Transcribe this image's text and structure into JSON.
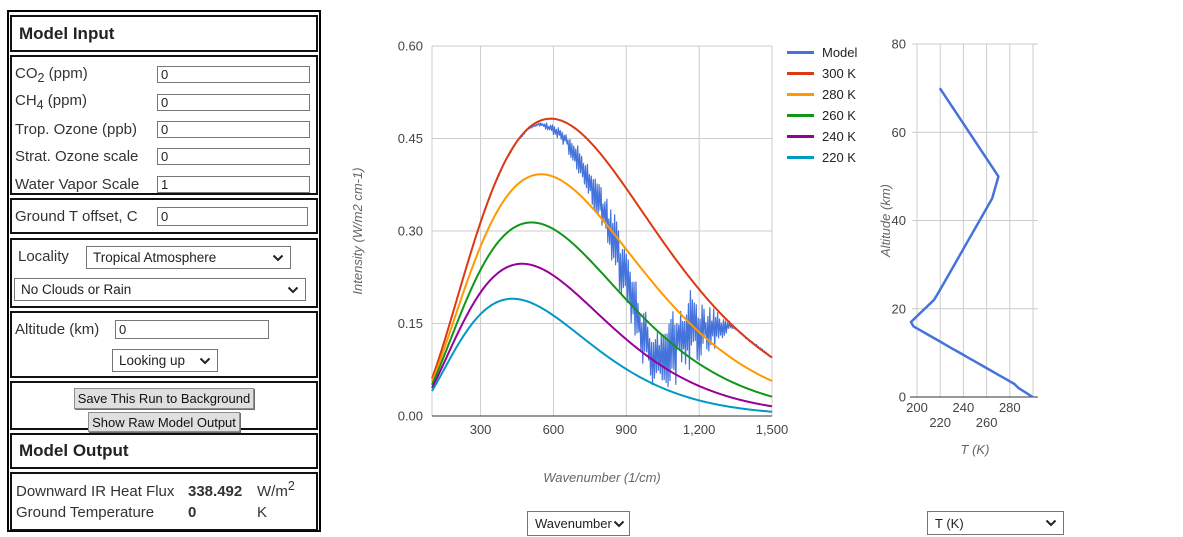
{
  "panel": {
    "input_title": "Model Input",
    "fields": [
      {
        "pre": "CO",
        "sub": "2",
        "post": " (ppm)",
        "value": "0"
      },
      {
        "pre": "CH",
        "sub": "4",
        "post": " (ppm)",
        "value": "0"
      },
      {
        "pre": "Trop. Ozone (ppb)",
        "sub": "",
        "post": "",
        "value": "0"
      },
      {
        "pre": "Strat. Ozone scale",
        "sub": "",
        "post": "",
        "value": "0"
      },
      {
        "pre": "Water Vapor Scale",
        "sub": "",
        "post": "",
        "value": "1"
      }
    ],
    "ground_offset": {
      "label": "Ground T offset, C",
      "value": "0"
    },
    "locality_label": "Locality",
    "locality_value": "Tropical Atmosphere",
    "clouds_value": "No Clouds or Rain",
    "altitude_label": "Altitude (km)",
    "altitude_value": "0",
    "direction_value": "Looking up",
    "save_button": "Save This Run to Background",
    "raw_button": "Show Raw Model Output",
    "output_title": "Model Output",
    "output_rows": [
      {
        "label": "Downward IR Heat Flux",
        "value": "338.492",
        "unit_pre": "W/m",
        "unit_sup": "2"
      },
      {
        "label": "Ground Temperature",
        "value": "0",
        "unit_pre": "K",
        "unit_sup": ""
      }
    ]
  },
  "controls": {
    "spectrum_x_select": "Wavenumber",
    "profile_x_select": "T (K)"
  },
  "chart_data": [
    {
      "id": "spectrum",
      "type": "line",
      "xlabel": "Wavenumber (1/cm)",
      "ylabel": "Intensity (W/m2 cm-1)",
      "x_range": [
        100,
        1500
      ],
      "y_range": [
        0,
        0.6
      ],
      "x_ticks": [
        {
          "v": 300,
          "label": "300"
        },
        {
          "v": 600,
          "label": "600"
        },
        {
          "v": 900,
          "label": "900"
        },
        {
          "v": 1200,
          "label": "1,200"
        },
        {
          "v": 1500,
          "label": "1,500"
        }
      ],
      "y_ticks": [
        {
          "v": 0,
          "label": "0.00"
        },
        {
          "v": 0.15,
          "label": "0.15"
        },
        {
          "v": 0.3,
          "label": "0.30"
        },
        {
          "v": 0.45,
          "label": "0.45"
        },
        {
          "v": 0.6,
          "label": "0.60"
        }
      ],
      "legend_position": "right",
      "series": [
        {
          "name": "Model",
          "color": "#4573DB",
          "kind": "modtran_spectrum",
          "envelope": [
            [
              100,
              0.0595,
              0.0625
            ],
            [
              150,
              0.1185,
              0.1215
            ],
            [
              200,
              0.1845,
              0.1875
            ],
            [
              250,
              0.2505,
              0.2535
            ],
            [
              300,
              0.3125,
              0.3155
            ],
            [
              350,
              0.366,
              0.369
            ],
            [
              400,
              0.4105,
              0.4135
            ],
            [
              450,
              0.4435,
              0.4465
            ],
            [
              500,
              0.4655,
              0.4695
            ],
            [
              540,
              0.4705,
              0.4765
            ],
            [
              570,
              0.464,
              0.476
            ],
            [
              600,
              0.455,
              0.472
            ],
            [
              630,
              0.448,
              0.468
            ],
            [
              660,
              0.425,
              0.458
            ],
            [
              700,
              0.39,
              0.44
            ],
            [
              740,
              0.36,
              0.415
            ],
            [
              780,
              0.32,
              0.39
            ],
            [
              820,
              0.27,
              0.355
            ],
            [
              860,
              0.22,
              0.32
            ],
            [
              900,
              0.16,
              0.27
            ],
            [
              940,
              0.11,
              0.22
            ],
            [
              980,
              0.07,
              0.17
            ],
            [
              1020,
              0.04,
              0.14
            ],
            [
              1060,
              0.035,
              0.16
            ],
            [
              1100,
              0.05,
              0.195
            ],
            [
              1140,
              0.06,
              0.205
            ],
            [
              1180,
              0.08,
              0.205
            ],
            [
              1220,
              0.09,
              0.19
            ],
            [
              1260,
              0.1,
              0.175
            ],
            [
              1300,
              0.12,
              0.16
            ],
            [
              1330,
              0.14,
              0.152
            ],
            [
              1360,
              0.1365,
              0.1405
            ],
            [
              1400,
              0.1225,
              0.1265
            ],
            [
              1450,
              0.108,
              0.112
            ],
            [
              1500,
              0.0935,
              0.0965
            ]
          ]
        },
        {
          "name": "300 K",
          "color": "#DC3912",
          "kind": "blackbody",
          "temperature_K": 300,
          "sample_points": [
            [
              100,
              0.061
            ],
            [
              200,
              0.186
            ],
            [
              300,
              0.314
            ],
            [
              400,
              0.412
            ],
            [
              500,
              0.468
            ],
            [
              600,
              0.482
            ],
            [
              700,
              0.463
            ],
            [
              800,
              0.422
            ],
            [
              900,
              0.369
            ],
            [
              1000,
              0.312
            ],
            [
              1100,
              0.256
            ],
            [
              1200,
              0.205
            ],
            [
              1300,
              0.161
            ],
            [
              1400,
              0.125
            ],
            [
              1500,
              0.095
            ]
          ]
        },
        {
          "name": "280 K",
          "color": "#FF9900",
          "kind": "blackbody",
          "temperature_K": 280,
          "sample_points": [
            [
              100,
              0.056
            ],
            [
              200,
              0.167
            ],
            [
              300,
              0.275
            ],
            [
              400,
              0.352
            ],
            [
              500,
              0.388
            ],
            [
              600,
              0.388
            ],
            [
              700,
              0.362
            ],
            [
              800,
              0.319
            ],
            [
              900,
              0.27
            ],
            [
              1000,
              0.221
            ],
            [
              1100,
              0.175
            ],
            [
              1200,
              0.136
            ],
            [
              1300,
              0.103
            ],
            [
              1400,
              0.077
            ],
            [
              1500,
              0.057
            ]
          ]
        },
        {
          "name": "260 K",
          "color": "#109618",
          "kind": "blackbody",
          "temperature_K": 260,
          "sample_points": [
            [
              100,
              0.051
            ],
            [
              200,
              0.148
            ],
            [
              300,
              0.237
            ],
            [
              400,
              0.294
            ],
            [
              500,
              0.314
            ],
            [
              600,
              0.303
            ],
            [
              700,
              0.272
            ],
            [
              800,
              0.232
            ],
            [
              900,
              0.189
            ],
            [
              1000,
              0.148
            ],
            [
              1100,
              0.113
            ],
            [
              1200,
              0.085
            ],
            [
              1300,
              0.062
            ],
            [
              1400,
              0.044
            ],
            [
              1500,
              0.031
            ]
          ]
        },
        {
          "name": "240 K",
          "color": "#990099",
          "kind": "blackbody",
          "temperature_K": 240,
          "sample_points": [
            [
              100,
              0.046
            ],
            [
              200,
              0.129
            ],
            [
              300,
              0.2
            ],
            [
              400,
              0.239
            ],
            [
              500,
              0.246
            ],
            [
              600,
              0.228
            ],
            [
              700,
              0.196
            ],
            [
              800,
              0.16
            ],
            [
              900,
              0.124
            ],
            [
              1000,
              0.093
            ],
            [
              1100,
              0.068
            ],
            [
              1200,
              0.049
            ],
            [
              1300,
              0.034
            ],
            [
              1400,
              0.023
            ],
            [
              1500,
              0.016
            ]
          ]
        },
        {
          "name": "220 K",
          "color": "#0099C6",
          "kind": "blackbody",
          "temperature_K": 220,
          "sample_points": [
            [
              100,
              0.041
            ],
            [
              200,
              0.111
            ],
            [
              300,
              0.165
            ],
            [
              400,
              0.189
            ],
            [
              500,
              0.185
            ],
            [
              600,
              0.163
            ],
            [
              700,
              0.133
            ],
            [
              800,
              0.103
            ],
            [
              900,
              0.076
            ],
            [
              1000,
              0.054
            ],
            [
              1100,
              0.037
            ],
            [
              1200,
              0.025
            ],
            [
              1300,
              0.017
            ],
            [
              1400,
              0.011
            ],
            [
              1500,
              0.007
            ]
          ]
        }
      ]
    },
    {
      "id": "temperature-profile",
      "type": "line",
      "xlabel": "T (K)",
      "ylabel": "Altitude (km)",
      "x_range": [
        195.7,
        304.3
      ],
      "y_range": [
        0,
        80
      ],
      "x_ticks": [
        {
          "v": 200,
          "label": "200",
          "row": 0
        },
        {
          "v": 220,
          "label": "220",
          "row": 1
        },
        {
          "v": 240,
          "label": "240",
          "row": 0
        },
        {
          "v": 260,
          "label": "260",
          "row": 1
        },
        {
          "v": 280,
          "label": "280",
          "row": 0
        }
      ],
      "x_gridlines": [
        200,
        220,
        240,
        260,
        280,
        300
      ],
      "y_ticks": [
        {
          "v": 0,
          "label": "0"
        },
        {
          "v": 20,
          "label": "20"
        },
        {
          "v": 40,
          "label": "40"
        },
        {
          "v": 60,
          "label": "60"
        },
        {
          "v": 80,
          "label": "80"
        }
      ],
      "series": [
        {
          "name": "T (K)",
          "color": "#4573DB",
          "points": [
            [
              299.7,
              0
            ],
            [
              293.7,
              1
            ],
            [
              287.7,
              2
            ],
            [
              283.7,
              3
            ],
            [
              277.0,
              4
            ],
            [
              270.3,
              5
            ],
            [
              263.6,
              6
            ],
            [
              257.0,
              7
            ],
            [
              250.3,
              8
            ],
            [
              243.6,
              9
            ],
            [
              237.0,
              10
            ],
            [
              230.1,
              11
            ],
            [
              223.6,
              12
            ],
            [
              217.0,
              13
            ],
            [
              210.3,
              14
            ],
            [
              203.7,
              15
            ],
            [
              197.0,
              16
            ],
            [
              194.8,
              17
            ],
            [
              198.8,
              18
            ],
            [
              202.7,
              19
            ],
            [
              206.7,
              20
            ],
            [
              210.7,
              21
            ],
            [
              214.6,
              22
            ],
            [
              217.0,
              23
            ],
            [
              219.2,
              24
            ],
            [
              221.4,
              25
            ],
            [
              232.3,
              30
            ],
            [
              243.1,
              35
            ],
            [
              254.0,
              40
            ],
            [
              264.8,
              45
            ],
            [
              270.2,
              50
            ],
            [
              219.7,
              70
            ]
          ]
        }
      ]
    }
  ]
}
